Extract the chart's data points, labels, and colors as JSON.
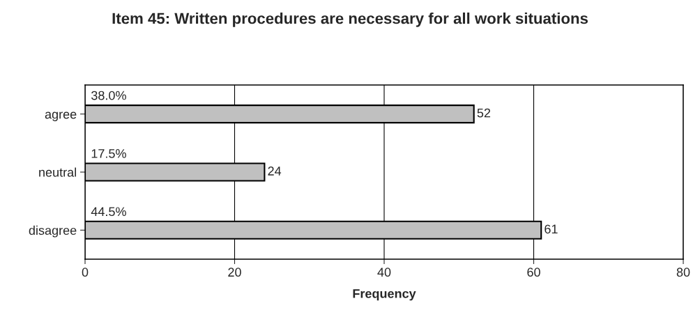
{
  "chart_data": {
    "type": "bar",
    "orientation": "horizontal",
    "title": "Item 45: Written procedures are necessary for all work situations",
    "xlabel": "Frequency",
    "categories": [
      "agree",
      "neutral",
      "disagree"
    ],
    "series": [
      {
        "color": "#c0c0c0",
        "values": [
          52,
          24,
          61
        ]
      }
    ],
    "data_labels": true,
    "xlim": [
      0,
      80
    ],
    "xticks": [
      0,
      20,
      40,
      60,
      80
    ],
    "grid": "x",
    "legend": false,
    "annotations": [
      "38.0%",
      "17.5%",
      "44.5%"
    ]
  }
}
